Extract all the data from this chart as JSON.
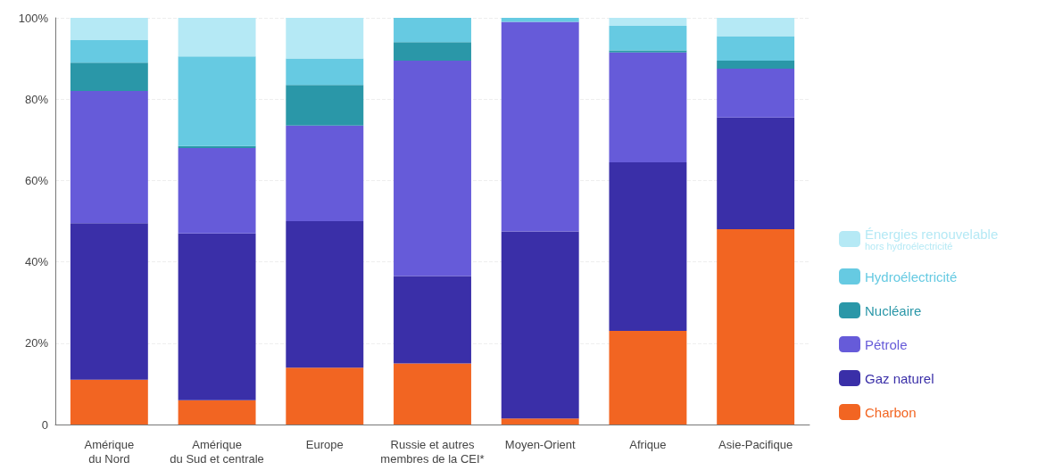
{
  "chart_data": {
    "type": "bar",
    "stacked": true,
    "categories": [
      "Amérique\ndu Nord",
      "Amérique\ndu Sud et centrale",
      "Europe",
      "Russie et autres\nmembres de la CEI*",
      "Moyen-Orient",
      "Afrique",
      "Asie-Pacifique"
    ],
    "series": [
      {
        "name": "Charbon",
        "color": "#f26522",
        "values": [
          11,
          6,
          14,
          15,
          1.5,
          23,
          48
        ]
      },
      {
        "name": "Gaz naturel",
        "color": "#3a2fa8",
        "values": [
          38.5,
          41,
          36,
          21.5,
          46,
          41.5,
          27.5
        ]
      },
      {
        "name": "Pétrole",
        "color": "#665bd9",
        "values": [
          32.5,
          21,
          23.5,
          53,
          51.5,
          27,
          12
        ]
      },
      {
        "name": "Nucléaire",
        "color": "#2a97a8",
        "values": [
          7,
          0.5,
          10,
          4.5,
          0,
          0.5,
          2
        ]
      },
      {
        "name": "Hydroélectricité",
        "color": "#66cae2",
        "values": [
          5.5,
          22,
          6.5,
          6,
          1,
          6,
          6
        ]
      },
      {
        "name": "Énergies renouvelable\nhors hydroélectricité",
        "color": "#b5e9f5",
        "values": [
          5.5,
          9.5,
          10,
          0,
          0,
          2,
          4.5
        ]
      }
    ],
    "ylim": [
      0,
      100
    ],
    "yticks": [
      0,
      {
        "value": 20,
        "label": "20%"
      },
      {
        "value": 40,
        "label": "40%"
      },
      {
        "value": 60,
        "label": "60%"
      },
      {
        "value": 80,
        "label": "80%"
      },
      {
        "value": 100,
        "label": "100%"
      }
    ],
    "grid": "y",
    "legend": "right"
  }
}
